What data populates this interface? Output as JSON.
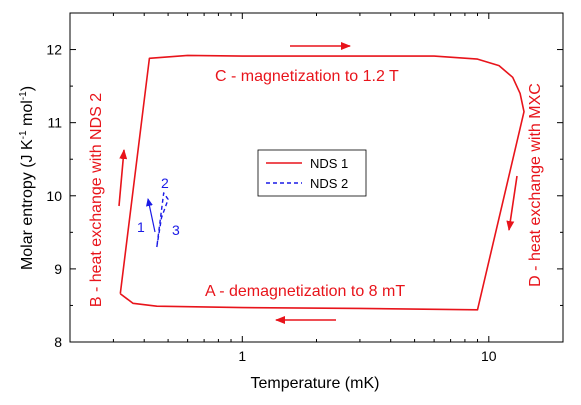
{
  "chart_data": {
    "type": "line",
    "xlabel": "Temperature (mK)",
    "ylabel": {
      "main": "Molar entropy (J K",
      "sup1": "-1",
      "mid": " mol",
      "sup2": "-1",
      "end": ")"
    },
    "x_scale": "log",
    "xlim": [
      0.2,
      20
    ],
    "ylim": [
      8,
      12.5
    ],
    "x_ticks": [
      {
        "value": 1,
        "label": "1"
      },
      {
        "value": 10,
        "label": "10"
      }
    ],
    "y_ticks": [
      {
        "value": 8,
        "label": "8"
      },
      {
        "value": 9,
        "label": "9"
      },
      {
        "value": 10,
        "label": "10"
      },
      {
        "value": 11,
        "label": "11"
      },
      {
        "value": 12,
        "label": "12"
      }
    ],
    "grid": false,
    "legend_position": "center",
    "series": [
      {
        "name": "NDS 1",
        "color": "#e8141b",
        "style": "solid",
        "points": [
          [
            0.32,
            8.66
          ],
          [
            0.36,
            8.53
          ],
          [
            0.45,
            8.49
          ],
          [
            1.0,
            8.47
          ],
          [
            3.0,
            8.46
          ],
          [
            9.0,
            8.44
          ],
          [
            13.9,
            11.15
          ],
          [
            13.4,
            11.4
          ],
          [
            12.5,
            11.62
          ],
          [
            11.0,
            11.78
          ],
          [
            9.0,
            11.87
          ],
          [
            6.0,
            11.91
          ],
          [
            1.0,
            11.91
          ],
          [
            0.6,
            11.92
          ],
          [
            0.42,
            11.88
          ],
          [
            0.32,
            8.66
          ]
        ]
      },
      {
        "name": "NDS 2",
        "color": "#1a1ae6",
        "style": "dashed",
        "points": [
          [
            0.45,
            9.3
          ],
          [
            0.47,
            9.7
          ],
          [
            0.5,
            9.95
          ],
          [
            0.48,
            10.04
          ],
          [
            0.45,
            9.3
          ]
        ]
      }
    ],
    "annotations": [
      {
        "id": "c",
        "text": "C - magnetization to 1.2 T",
        "color": "#e8141b"
      },
      {
        "id": "a",
        "text": "A - demagnetization to 8 mT",
        "color": "#e8141b"
      },
      {
        "id": "b",
        "text": "B - heat exchange with NDS 2",
        "color": "#e8141b"
      },
      {
        "id": "d",
        "text": "D - heat exchange with MXC",
        "color": "#e8141b"
      },
      {
        "id": "n1",
        "text": "1",
        "color": "#1a1ae6"
      },
      {
        "id": "n2",
        "text": "2",
        "color": "#1a1ae6"
      },
      {
        "id": "n3",
        "text": "3",
        "color": "#1a1ae6"
      }
    ]
  }
}
